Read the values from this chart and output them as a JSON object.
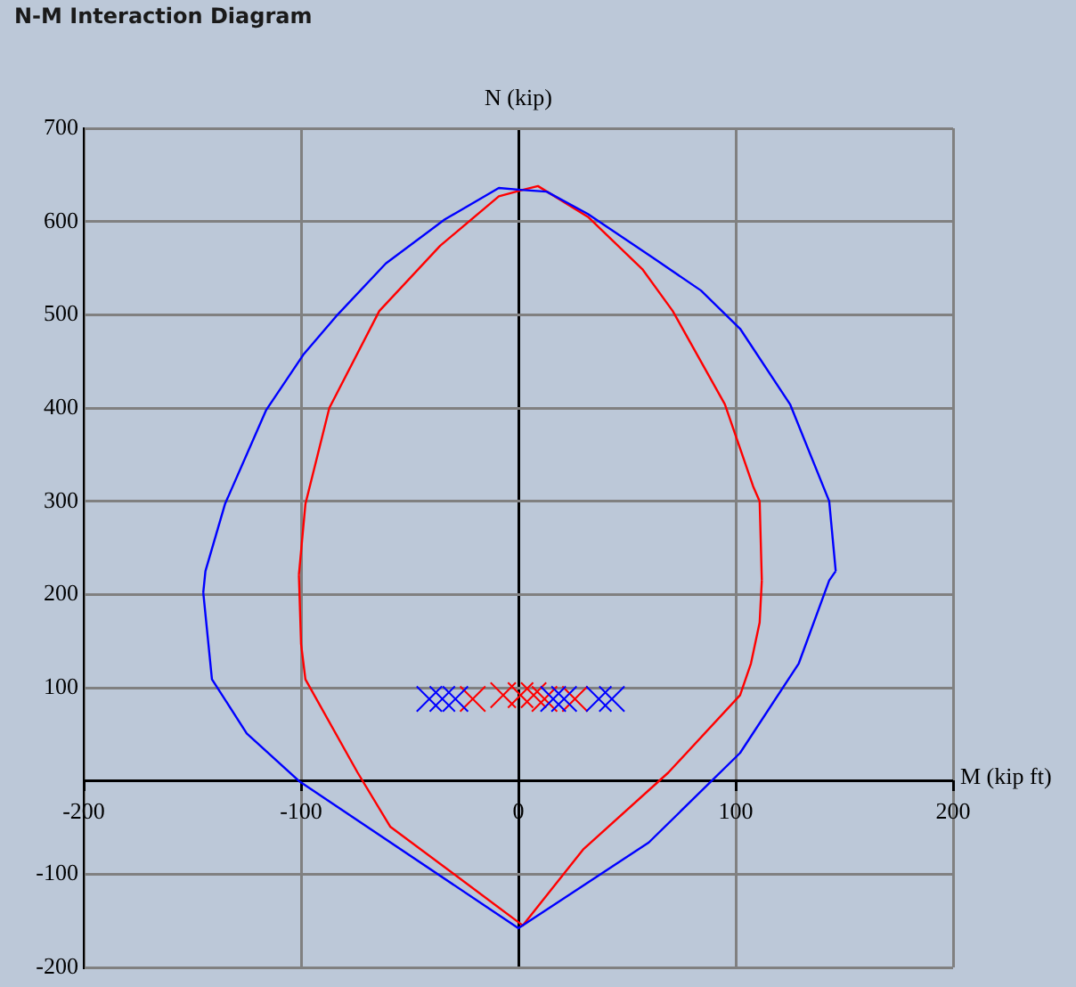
{
  "chart_data": {
    "type": "line",
    "title": "N-M Interaction Diagram",
    "xlabel": "M (kip ft)",
    "ylabel": "N (kip)",
    "xlim": [
      -200,
      200
    ],
    "xticks": [
      -200,
      -100,
      0,
      100,
      200
    ],
    "ylim": [
      -200,
      700
    ],
    "yticks": [
      -200,
      -100,
      {
        "value": 0,
        "label": null
      },
      100,
      200,
      300,
      400,
      500,
      600,
      700
    ],
    "grid": true,
    "legend": false,
    "line_style": "solid",
    "series": [
      {
        "type": "line",
        "color": "#0000ff",
        "marker": "none",
        "x": [
          -145,
          -144,
          -135,
          -116,
          -99,
          -84,
          -61,
          -34,
          -9,
          1,
          13,
          32,
          62,
          84,
          102,
          125,
          143,
          146,
          null,
          -145,
          -141,
          -125,
          -101,
          0,
          60,
          102,
          129,
          143,
          146
        ],
        "values": [
          202,
          225,
          297,
          398,
          457,
          498,
          555,
          602,
          636,
          634,
          632,
          608,
          561,
          526,
          485,
          404,
          300,
          225,
          null,
          202,
          109,
          51,
          0,
          -158,
          -66,
          30,
          126,
          215,
          225
        ]
      },
      {
        "type": "line",
        "color": "#ff0000",
        "marker": "none",
        "x": [
          -101,
          -98,
          -87,
          -64,
          -36,
          -9,
          2,
          9,
          32,
          57,
          71,
          95,
          108,
          111,
          112,
          null,
          -101,
          -100,
          -98,
          -74,
          -59,
          2,
          30,
          69,
          102,
          107,
          111,
          112
        ],
        "values": [
          221,
          297,
          400,
          504,
          574,
          627,
          634,
          638,
          605,
          549,
          504,
          404,
          316,
          300,
          215,
          null,
          221,
          147,
          109,
          9,
          -49,
          -155,
          -73,
          9,
          92,
          126,
          170,
          215
        ]
      },
      {
        "type": "scatter",
        "color": "#0000ff",
        "marker": "cross",
        "x": [
          -41,
          -35,
          -29,
          16,
          21,
          37,
          43
        ],
        "values": [
          88,
          88,
          88,
          88,
          88,
          88,
          88
        ]
      },
      {
        "type": "scatter",
        "color": "#ff0000",
        "marker": "cross",
        "x": [
          -21,
          -7,
          1,
          7,
          12,
          26
        ],
        "values": [
          88,
          92,
          92,
          92,
          88,
          88
        ]
      }
    ]
  }
}
